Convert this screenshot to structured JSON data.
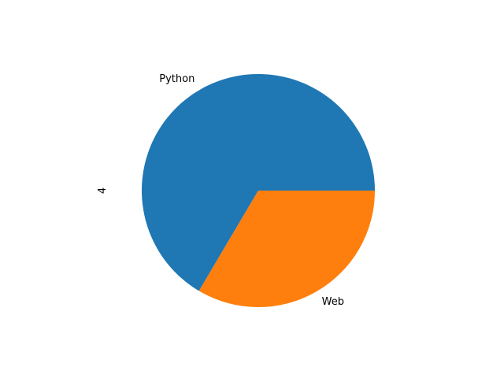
{
  "chart_data": {
    "type": "pie",
    "title": "",
    "ylabel": "4",
    "labels": [
      "Python",
      "Web"
    ],
    "values": [
      66.5,
      33.5
    ],
    "colors": [
      "#1f77b4",
      "#ff7f0e"
    ],
    "start_angle_deg": 0,
    "direction": "counterclockwise",
    "legend": "none"
  }
}
